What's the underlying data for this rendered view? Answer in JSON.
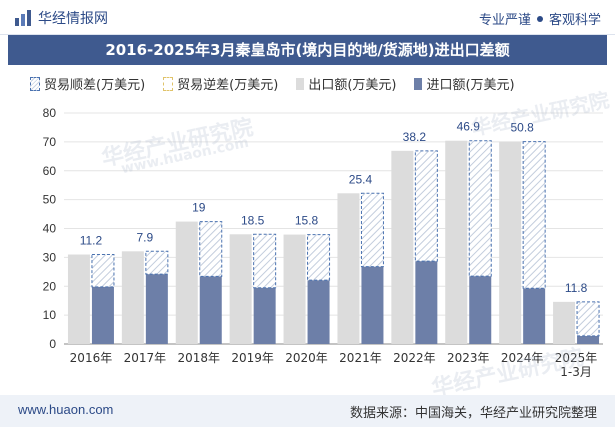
{
  "header": {
    "brand": "华经情报网",
    "tagline_left": "专业严谨",
    "tagline_right": "客观科学"
  },
  "title": "2016-2025年3月秦皇岛市(境内目的地/货源地)进出口差额",
  "legend": {
    "surplus": "贸易顺差(万美元)",
    "deficit": "贸易逆差(万美元)",
    "export": "出口额(万美元)",
    "import": "进口额(万美元)"
  },
  "watermark": {
    "cn": "华经产业研究院",
    "en": "www.huaon.com"
  },
  "footer": {
    "site": "www.huaon.com",
    "source": "数据来源：中国海关，华经产业研究院整理"
  },
  "colors": {
    "export": "#dcdcdc",
    "import": "#6d7fa8",
    "surplus_border": "#4a72b0",
    "title_bg": "#3f5a8f"
  },
  "chart_data": {
    "type": "bar",
    "categories": [
      "2016年",
      "2017年",
      "2018年",
      "2019年",
      "2020年",
      "2021年",
      "2022年",
      "2023年",
      "2024年",
      "2025年\n1-3月"
    ],
    "series": [
      {
        "name": "出口额(万美元)",
        "values": [
          31.0,
          32.1,
          42.4,
          38.0,
          37.9,
          52.2,
          66.9,
          70.4,
          70.1,
          14.6
        ]
      },
      {
        "name": "进口额(万美元)",
        "values": [
          19.8,
          24.2,
          23.4,
          19.5,
          22.1,
          26.8,
          28.7,
          23.5,
          19.3,
          2.8
        ]
      },
      {
        "name": "贸易顺差(万美元)",
        "values": [
          11.2,
          7.9,
          19,
          18.5,
          15.8,
          25.4,
          38.2,
          46.9,
          50.8,
          11.8
        ]
      }
    ],
    "ylim": [
      0,
      80
    ],
    "yticks": [
      0,
      10,
      20,
      30,
      40,
      50,
      60,
      70,
      80
    ],
    "grid": true,
    "legend_position": "top"
  }
}
